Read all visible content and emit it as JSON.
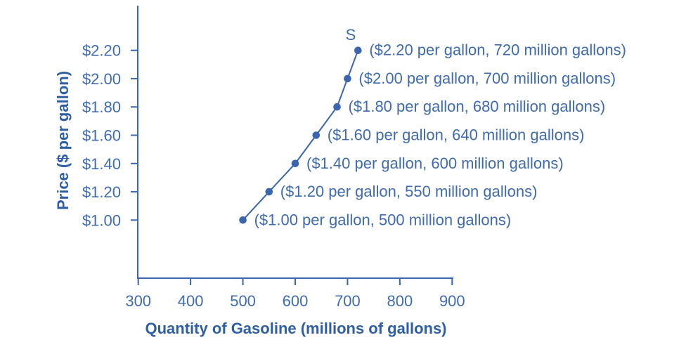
{
  "colors": {
    "accent": "#3a66ae",
    "label_text": "#3f6bb0",
    "title_text": "#2e5fa6",
    "background": "#ffffff"
  },
  "chart_data": {
    "type": "line",
    "title": "",
    "curve_label": "S",
    "xlabel": "Quantity of Gasoline (millions of gallons)",
    "ylabel": "Price ($ per gallon)",
    "xlim": [
      300,
      900
    ],
    "ylim": [
      1.0,
      2.2
    ],
    "grid": false,
    "legend_position": "none",
    "x_ticks": [
      {
        "value": 300,
        "label": "300"
      },
      {
        "value": 400,
        "label": "400"
      },
      {
        "value": 500,
        "label": "500"
      },
      {
        "value": 600,
        "label": "600"
      },
      {
        "value": 700,
        "label": "700"
      },
      {
        "value": 800,
        "label": "800"
      },
      {
        "value": 900,
        "label": "900"
      }
    ],
    "y_ticks": [
      {
        "value": 1.0,
        "label": "$1.00"
      },
      {
        "value": 1.2,
        "label": "$1.20"
      },
      {
        "value": 1.4,
        "label": "$1.40"
      },
      {
        "value": 1.6,
        "label": "$1.60"
      },
      {
        "value": 1.8,
        "label": "$1.80"
      },
      {
        "value": 2.0,
        "label": "$2.00"
      },
      {
        "value": 2.2,
        "label": "$2.20"
      }
    ],
    "series": [
      {
        "name": "S",
        "points": [
          {
            "price": 1.0,
            "quantity": 500,
            "annotation": "($1.00 per gallon, 500 million gallons)"
          },
          {
            "price": 1.2,
            "quantity": 550,
            "annotation": "($1.20 per gallon, 550 million gallons)"
          },
          {
            "price": 1.4,
            "quantity": 600,
            "annotation": "($1.40 per gallon, 600 million gallons)"
          },
          {
            "price": 1.6,
            "quantity": 640,
            "annotation": "($1.60 per gallon, 640 million gallons)"
          },
          {
            "price": 1.8,
            "quantity": 680,
            "annotation": "($1.80 per gallon, 680 million gallons)"
          },
          {
            "price": 2.0,
            "quantity": 700,
            "annotation": "($2.00 per gallon, 700 million gallons)"
          },
          {
            "price": 2.2,
            "quantity": 720,
            "annotation": "($2.20 per gallon, 720 million gallons)"
          }
        ]
      }
    ]
  }
}
